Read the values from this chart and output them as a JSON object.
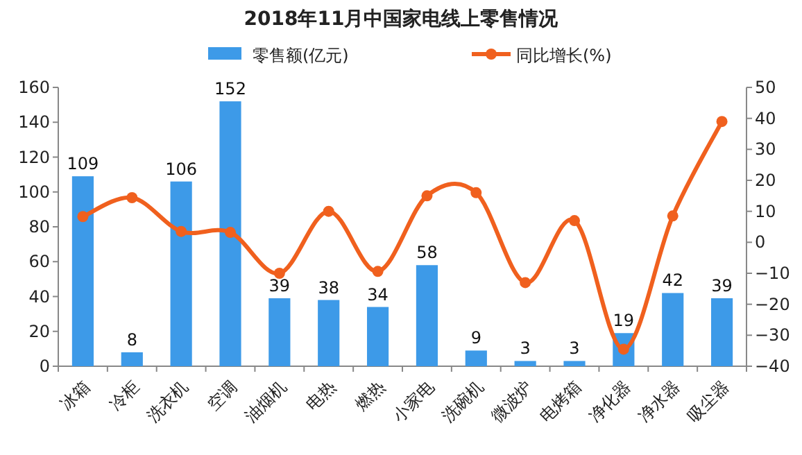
{
  "chart_data": {
    "type": "bar",
    "title": "2018年11月中国家电线上零售情况",
    "categories": [
      "冰箱",
      "冷柜",
      "洗衣机",
      "空调",
      "油烟机",
      "电热",
      "燃热",
      "小家电",
      "洗碗机",
      "微波炉",
      "电烤箱",
      "净化器",
      "净水器",
      "吸尘器"
    ],
    "series": [
      {
        "name": "零售额(亿元)",
        "color": "#3d9ae8",
        "values": [
          109,
          8,
          106,
          152,
          39,
          38,
          34,
          58,
          9,
          3,
          3,
          19,
          42,
          39
        ],
        "value_labels": [
          "109",
          "8",
          "106",
          "152",
          "39",
          "38",
          "34",
          "58",
          "9",
          "3",
          "3",
          "19",
          "42",
          "39"
        ]
      },
      {
        "name": "同比增长(%)",
        "type": "line",
        "axis": "y2",
        "color": "#f0601e",
        "values": [
          8.3,
          14.4,
          3.5,
          3.2,
          -10,
          10,
          -9.4,
          15,
          16,
          -13,
          7,
          -34.5,
          8.5,
          39
        ]
      }
    ],
    "ylim": [
      0,
      160
    ],
    "yticks": [
      0,
      20,
      40,
      60,
      80,
      100,
      120,
      140,
      160
    ],
    "y2lim": [
      -40,
      50
    ],
    "y2ticks": [
      -40,
      -30,
      -20,
      -10,
      0,
      10,
      20,
      30,
      40,
      50
    ],
    "legend": "top",
    "marker": "circle",
    "grid": false
  }
}
